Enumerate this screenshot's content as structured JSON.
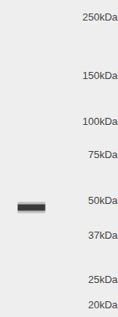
{
  "chart_data": {
    "type": "blot",
    "log": "y",
    "ylim": [
      18,
      290
    ],
    "yticks": [
      {
        "value": 250,
        "label": "250kDa"
      },
      {
        "value": 150,
        "label": "150kDa"
      },
      {
        "value": 100,
        "label": "100kDa"
      },
      {
        "value": 75,
        "label": "75kDa"
      },
      {
        "value": 50,
        "label": "50kDa"
      },
      {
        "value": 37,
        "label": "37kDa"
      },
      {
        "value": 25,
        "label": "25kDa"
      },
      {
        "value": 20,
        "label": "20kDa"
      }
    ],
    "xlim": [
      0,
      3
    ],
    "tick_labels": "y",
    "color": "#2b2b2b",
    "bands": [
      {
        "x": 0.8,
        "value": 47
      }
    ]
  }
}
